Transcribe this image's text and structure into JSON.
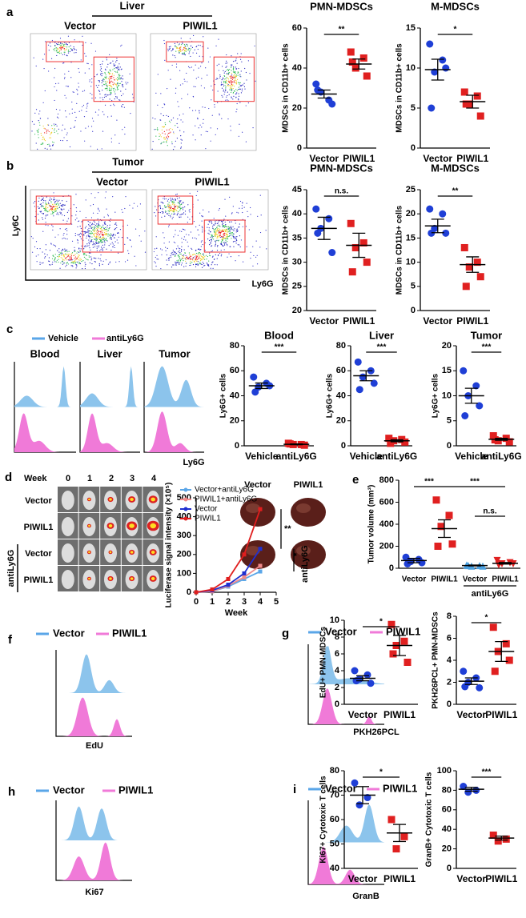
{
  "figure": {
    "panel_labels": [
      "a",
      "b",
      "c",
      "d",
      "e",
      "f",
      "g",
      "h",
      "i"
    ],
    "a": {
      "title": "Liver",
      "groups": [
        "Vector",
        "PIWIL1"
      ]
    },
    "b": {
      "title": "Tumor",
      "groups": [
        "Vector",
        "PIWIL1"
      ],
      "ylabel": "Ly6C",
      "xlabel": "Ly6G"
    },
    "c": {
      "legend": [
        "Vehicle",
        "antiLy6G"
      ],
      "titles": [
        "Blood",
        "Liver",
        "Tumor"
      ],
      "xlabel": "Ly6G"
    },
    "d": {
      "week_label": "Week",
      "weeks": [
        "0",
        "1",
        "2",
        "3",
        "4"
      ],
      "rows": [
        "Vector",
        "PIWIL1",
        "Vector",
        "PIWIL1"
      ],
      "group": "antiLy6G"
    },
    "e": {
      "cols": [
        "Vector",
        "PIWIL1"
      ]
    },
    "f": {
      "legend": [
        "Vector",
        "PIWIL1"
      ],
      "xlabel": "EdU"
    },
    "g": {
      "legend": [
        "Vector",
        "PIWIL1"
      ],
      "xlabel": "PKH26PCL"
    },
    "h": {
      "legend": [
        "Vector",
        "PIWIL1"
      ],
      "xlabel": "Ki67"
    },
    "i": {
      "legend": [
        "Vector",
        "PIWIL1"
      ],
      "xlabel": "GranB"
    }
  },
  "chart_data": [
    {
      "type": "dotplot",
      "title": "PMN-MDSCs",
      "ylabel": "MDSCs in CD11b+ cells",
      "categories": [
        "Vector",
        "PIWIL1"
      ],
      "values": [
        [
          32,
          24,
          28,
          22,
          29
        ],
        [
          48,
          45,
          40,
          36,
          43
        ]
      ],
      "means": [
        27,
        42
      ],
      "errors": [
        2,
        2.5
      ],
      "colors": [
        "#1f3fd6",
        "#e02020"
      ],
      "markers": [
        "circle",
        "square"
      ],
      "ylim": [
        0,
        60
      ],
      "yticks": [
        0,
        20,
        40,
        60
      ],
      "annotations": [
        "**"
      ]
    },
    {
      "type": "dotplot",
      "title": "M-MDSCs",
      "ylabel": "MDSCs in CD11b+ cells",
      "categories": [
        "Vector",
        "PIWIL1"
      ],
      "values": [
        [
          13,
          11,
          9.5,
          10,
          5
        ],
        [
          7,
          6.5,
          5.5,
          4,
          5.5
        ]
      ],
      "means": [
        9.8,
        5.8
      ],
      "errors": [
        1.3,
        0.8
      ],
      "colors": [
        "#1f3fd6",
        "#e02020"
      ],
      "markers": [
        "circle",
        "square"
      ],
      "ylim": [
        0,
        15
      ],
      "yticks": [
        0,
        5,
        10,
        15
      ],
      "annotations": [
        "*"
      ]
    },
    {
      "type": "dotplot",
      "title": "PMN-MDSCs",
      "ylabel": "MDSCs in CD11b+ cells",
      "categories": [
        "Vector",
        "PIWIL1"
      ],
      "values": [
        [
          41,
          39,
          37,
          32,
          36
        ],
        [
          38,
          34,
          33,
          30,
          28
        ]
      ],
      "means": [
        37,
        33.5
      ],
      "errors": [
        2.3,
        2.5
      ],
      "colors": [
        "#1f3fd6",
        "#e02020"
      ],
      "markers": [
        "circle",
        "square"
      ],
      "ylim": [
        20,
        45
      ],
      "yticks": [
        20,
        25,
        30,
        35,
        40,
        45
      ],
      "annotations": [
        "n.s."
      ]
    },
    {
      "type": "dotplot",
      "title": "M-MDSCs",
      "ylabel": "MDSCs in CD11b+ cells",
      "categories": [
        "Vector",
        "PIWIL1"
      ],
      "values": [
        [
          21,
          20,
          17,
          16,
          16
        ],
        [
          13,
          10,
          9,
          7,
          5
        ]
      ],
      "means": [
        17.5,
        9.5
      ],
      "errors": [
        1.4,
        1.6
      ],
      "colors": [
        "#1f3fd6",
        "#e02020"
      ],
      "markers": [
        "circle",
        "square"
      ],
      "ylim": [
        0,
        25
      ],
      "yticks": [
        0,
        5,
        10,
        15,
        20,
        25
      ],
      "annotations": [
        "**"
      ]
    },
    {
      "type": "dotplot",
      "title": "Blood",
      "ylabel": "Ly6G+ cells",
      "categories": [
        "Vehicle",
        "antiLy6G"
      ],
      "values": [
        [
          55,
          50,
          47,
          48,
          43
        ],
        [
          2,
          1,
          1,
          0.5,
          1.5
        ]
      ],
      "means": [
        48,
        1.2
      ],
      "errors": [
        2.2,
        0.3
      ],
      "colors": [
        "#1f3fd6",
        "#e02020"
      ],
      "markers": [
        "circle",
        "square"
      ],
      "ylim": [
        0,
        80
      ],
      "yticks": [
        0,
        20,
        40,
        60,
        80
      ],
      "annotations": [
        "***"
      ]
    },
    {
      "type": "dotplot",
      "title": "Liver",
      "ylabel": "Ly6G+ cells",
      "categories": [
        "Vehicle",
        "antiLy6G"
      ],
      "values": [
        [
          67,
          60,
          55,
          50,
          45
        ],
        [
          6,
          5,
          4,
          3,
          2
        ]
      ],
      "means": [
        56,
        4
      ],
      "errors": [
        4,
        0.8
      ],
      "colors": [
        "#1f3fd6",
        "#e02020"
      ],
      "markers": [
        "circle",
        "square"
      ],
      "ylim": [
        0,
        80
      ],
      "yticks": [
        0,
        20,
        40,
        60,
        80
      ],
      "annotations": [
        "***"
      ]
    },
    {
      "type": "dotplot",
      "title": "Tumor",
      "ylabel": "Ly6G+ cells",
      "categories": [
        "Vehicle",
        "antiLy6G"
      ],
      "values": [
        [
          15,
          12,
          10,
          8,
          6
        ],
        [
          2,
          1.5,
          1,
          0.8,
          1.2
        ]
      ],
      "means": [
        10,
        1.3
      ],
      "errors": [
        1.5,
        0.2
      ],
      "colors": [
        "#1f3fd6",
        "#e02020"
      ],
      "markers": [
        "circle",
        "square"
      ],
      "ylim": [
        0,
        20
      ],
      "yticks": [
        0,
        5,
        10,
        15,
        20
      ],
      "annotations": [
        "***"
      ]
    },
    {
      "type": "line",
      "ylabel": "Luciferase signal intensity (×10⁵)",
      "xlabel": "Week",
      "x": [
        0,
        1,
        2,
        3,
        4
      ],
      "xlim": [
        0,
        5
      ],
      "xticks": [
        0,
        1,
        2,
        3,
        4,
        5
      ],
      "ylim": [
        0,
        500
      ],
      "yticks": [
        0,
        100,
        200,
        300,
        400,
        500
      ],
      "series": [
        {
          "name": "Vector+antiLy6G",
          "color": "#5aa6e8",
          "values": [
            0,
            5,
            30,
            70,
            110
          ]
        },
        {
          "name": "PIWIL1+antiLy6G",
          "color": "#f08a8a",
          "values": [
            0,
            5,
            35,
            80,
            140
          ]
        },
        {
          "name": "Vector",
          "color": "#1f2fd0",
          "values": [
            0,
            10,
            40,
            100,
            230
          ]
        },
        {
          "name": "PIWIL1",
          "color": "#e01e1e",
          "values": [
            0,
            15,
            70,
            200,
            440
          ]
        }
      ],
      "annotations": [
        "**",
        "*"
      ],
      "group_label": "antiLy6G"
    },
    {
      "type": "dotplot",
      "ylabel": "Tumor volume (mm³)",
      "categories": [
        "Vector",
        "PIWIL1",
        "Vector",
        "PIWIL1"
      ],
      "values": [
        [
          100,
          80,
          60,
          50,
          40
        ],
        [
          620,
          480,
          380,
          220,
          200
        ],
        [
          30,
          25,
          20,
          20,
          25
        ],
        [
          70,
          50,
          40,
          40,
          30
        ]
      ],
      "means": [
        70,
        360,
        25,
        45
      ],
      "errors": [
        20,
        80,
        4,
        7
      ],
      "colors": [
        "#1f3fd6",
        "#e02020",
        "#4aa0e0",
        "#e02020"
      ],
      "markers": [
        "circle",
        "square",
        "triangle",
        "triangle-down"
      ],
      "ylim": [
        0,
        800
      ],
      "yticks": [
        0,
        200,
        400,
        600,
        800
      ],
      "annotations": [
        "***",
        "***",
        "n.s."
      ],
      "group_label": "antiLy6G"
    },
    {
      "type": "dotplot",
      "ylabel": "EdU+ PMN-MDSCs",
      "categories": [
        "Vector",
        "PIWIL1"
      ],
      "values": [
        [
          4,
          3.5,
          3,
          2.5,
          2.8
        ],
        [
          9.5,
          7.5,
          7,
          5,
          6
        ]
      ],
      "means": [
        3.1,
        7
      ],
      "errors": [
        0.3,
        1.2
      ],
      "colors": [
        "#1f3fd6",
        "#e02020"
      ],
      "markers": [
        "circle",
        "square"
      ],
      "ylim": [
        0,
        10
      ],
      "yticks": [
        0,
        2,
        4,
        6,
        8,
        10
      ],
      "annotations": [
        "*"
      ]
    },
    {
      "type": "dotplot",
      "ylabel": "PKH26PCL+ PMN-MDSCs",
      "categories": [
        "Vector",
        "PIWIL1"
      ],
      "values": [
        [
          3,
          2.4,
          2,
          1.5,
          1.6
        ],
        [
          7,
          5.5,
          4.8,
          4,
          3
        ]
      ],
      "means": [
        2.1,
        4.8
      ],
      "errors": [
        0.3,
        0.9
      ],
      "colors": [
        "#1f3fd6",
        "#e02020"
      ],
      "markers": [
        "circle",
        "square"
      ],
      "ylim": [
        0,
        8
      ],
      "yticks": [
        0,
        2,
        4,
        6,
        8
      ],
      "annotations": [
        "*"
      ]
    },
    {
      "type": "dotplot",
      "ylabel": "Ki67+ Cytotoxic T cells",
      "categories": [
        "Vector",
        "PIWIL1"
      ],
      "values": [
        [
          75,
          69,
          66
        ],
        [
          60,
          53,
          48
        ]
      ],
      "means": [
        70,
        54.5
      ],
      "errors": [
        3.5,
        3.5
      ],
      "colors": [
        "#1f3fd6",
        "#e02020"
      ],
      "markers": [
        "circle",
        "square"
      ],
      "ylim": [
        40,
        80
      ],
      "yticks": [
        40,
        50,
        60,
        70,
        80
      ],
      "annotations": [
        "*"
      ]
    },
    {
      "type": "dotplot",
      "ylabel": "GranB+ Cytotoxic T cells",
      "categories": [
        "Vector",
        "PIWIL1"
      ],
      "values": [
        [
          84,
          80,
          78
        ],
        [
          34,
          30,
          28
        ]
      ],
      "means": [
        81,
        31
      ],
      "errors": [
        2,
        2
      ],
      "colors": [
        "#1f3fd6",
        "#e02020"
      ],
      "markers": [
        "circle",
        "square"
      ],
      "ylim": [
        0,
        100
      ],
      "yticks": [
        0,
        20,
        40,
        60,
        80,
        100
      ],
      "annotations": [
        "***"
      ]
    }
  ]
}
